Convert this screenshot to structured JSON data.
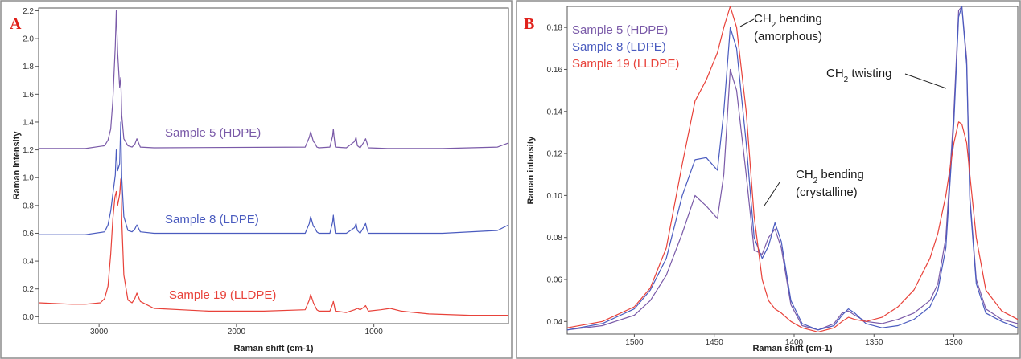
{
  "colors": {
    "hdpe": "#7a5aa8",
    "ldpe": "#4a5bbf",
    "lldpe": "#e8423a",
    "panel_label": "#e0201a",
    "frame": "#8c8c8c",
    "plot_border": "#555555"
  },
  "chart_data": [
    {
      "panel_label": "A",
      "type": "line",
      "xlabel": "Raman shift (cm-1)",
      "ylabel": "Raman intensity",
      "x_reversed": true,
      "xlim": [
        3440,
        20
      ],
      "ylim": [
        -0.05,
        2.22
      ],
      "xticks": [
        {
          "value": 3000,
          "label": "3000"
        },
        {
          "value": 2000,
          "label": "2000"
        },
        {
          "value": 1000,
          "label": "1000"
        }
      ],
      "yticks": [
        {
          "value": 0.0,
          "label": "0.0"
        },
        {
          "value": 0.2,
          "label": "0.2"
        },
        {
          "value": 0.4,
          "label": "0.4"
        },
        {
          "value": 0.6,
          "label": "0.6"
        },
        {
          "value": 0.8,
          "label": "0.8"
        },
        {
          "value": 1.0,
          "label": "1.0"
        },
        {
          "value": 1.2,
          "label": "1.2"
        },
        {
          "value": 1.4,
          "label": "1.4"
        },
        {
          "value": 1.6,
          "label": "1.6"
        },
        {
          "value": 1.8,
          "label": "1.8"
        },
        {
          "value": 2.0,
          "label": "2.0"
        },
        {
          "value": 2.2,
          "label": "2.2"
        }
      ],
      "annotations": [
        {
          "text": "Sample 5 (HDPE)",
          "series": "hdpe"
        },
        {
          "text": "Sample 8 (LDPE)",
          "series": "ldpe"
        },
        {
          "text": "Sample 19 (LLDPE)",
          "series": "lldpe"
        }
      ],
      "series": [
        {
          "key": "hdpe",
          "name": "Sample 5 (HDPE)",
          "x": [
            3440,
            3100,
            2960,
            2935,
            2915,
            2900,
            2882,
            2875,
            2865,
            2850,
            2842,
            2835,
            2820,
            2790,
            2760,
            2740,
            2725,
            2700,
            2600,
            1500,
            1470,
            1460,
            1440,
            1430,
            1415,
            1400,
            1320,
            1300,
            1295,
            1290,
            1280,
            1200,
            1140,
            1130,
            1120,
            1100,
            1070,
            1060,
            1050,
            1040,
            900,
            500,
            100,
            20
          ],
          "y": [
            1.21,
            1.21,
            1.23,
            1.27,
            1.35,
            1.55,
            1.95,
            2.2,
            1.9,
            1.65,
            1.72,
            1.45,
            1.28,
            1.23,
            1.22,
            1.24,
            1.28,
            1.22,
            1.215,
            1.22,
            1.29,
            1.33,
            1.26,
            1.25,
            1.22,
            1.215,
            1.22,
            1.3,
            1.35,
            1.3,
            1.22,
            1.215,
            1.26,
            1.29,
            1.23,
            1.215,
            1.26,
            1.28,
            1.25,
            1.215,
            1.21,
            1.21,
            1.22,
            1.25
          ]
        },
        {
          "key": "ldpe",
          "name": "Sample 8 (LDPE)",
          "x": [
            3440,
            3100,
            2960,
            2935,
            2915,
            2900,
            2882,
            2875,
            2865,
            2850,
            2842,
            2835,
            2820,
            2790,
            2760,
            2740,
            2725,
            2700,
            2600,
            1500,
            1470,
            1460,
            1440,
            1430,
            1415,
            1400,
            1320,
            1300,
            1295,
            1290,
            1280,
            1200,
            1140,
            1130,
            1120,
            1100,
            1070,
            1060,
            1050,
            1040,
            900,
            500,
            100,
            20
          ],
          "y": [
            0.59,
            0.59,
            0.61,
            0.66,
            0.76,
            0.88,
            1.02,
            1.2,
            1.05,
            1.1,
            1.4,
            1.0,
            0.72,
            0.62,
            0.61,
            0.63,
            0.66,
            0.61,
            0.6,
            0.6,
            0.67,
            0.72,
            0.65,
            0.64,
            0.61,
            0.6,
            0.6,
            0.68,
            0.73,
            0.68,
            0.6,
            0.6,
            0.64,
            0.67,
            0.62,
            0.6,
            0.65,
            0.67,
            0.63,
            0.6,
            0.6,
            0.6,
            0.62,
            0.66
          ]
        },
        {
          "key": "lldpe",
          "name": "Sample 19 (LLDPE)",
          "x": [
            3440,
            3200,
            3100,
            2990,
            2960,
            2935,
            2915,
            2900,
            2885,
            2875,
            2865,
            2850,
            2842,
            2835,
            2820,
            2790,
            2760,
            2740,
            2725,
            2700,
            2600,
            2200,
            1800,
            1500,
            1470,
            1460,
            1440,
            1430,
            1415,
            1400,
            1320,
            1300,
            1295,
            1290,
            1280,
            1200,
            1140,
            1120,
            1100,
            1070,
            1060,
            1050,
            1040,
            950,
            880,
            800,
            600,
            300,
            20
          ],
          "y": [
            0.1,
            0.09,
            0.09,
            0.1,
            0.13,
            0.22,
            0.45,
            0.7,
            0.86,
            0.9,
            0.8,
            0.88,
            0.99,
            0.7,
            0.3,
            0.12,
            0.1,
            0.13,
            0.17,
            0.11,
            0.06,
            0.04,
            0.04,
            0.05,
            0.12,
            0.16,
            0.1,
            0.08,
            0.05,
            0.04,
            0.04,
            0.09,
            0.11,
            0.09,
            0.04,
            0.03,
            0.05,
            0.06,
            0.05,
            0.07,
            0.08,
            0.06,
            0.04,
            0.05,
            0.06,
            0.04,
            0.02,
            0.01,
            0.01
          ]
        }
      ]
    },
    {
      "panel_label": "B",
      "type": "line",
      "xlabel": "Raman shift (cm-1)",
      "ylabel": "Raman intensity",
      "x_reversed": true,
      "xlim": [
        1542,
        1260
      ],
      "ylim": [
        0.034,
        0.19
      ],
      "xticks": [
        {
          "value": 1500,
          "label": "1500"
        },
        {
          "value": 1450,
          "label": "1450"
        },
        {
          "value": 1400,
          "label": "1400"
        },
        {
          "value": 1350,
          "label": "1350"
        },
        {
          "value": 1300,
          "label": "1300"
        }
      ],
      "yticks": [
        {
          "value": 0.04,
          "label": "0.04"
        },
        {
          "value": 0.06,
          "label": "0.06"
        },
        {
          "value": 0.08,
          "label": "0.08"
        },
        {
          "value": 0.1,
          "label": "0.10"
        },
        {
          "value": 0.12,
          "label": "0.12"
        },
        {
          "value": 0.14,
          "label": "0.14"
        },
        {
          "value": 0.16,
          "label": "0.16"
        },
        {
          "value": 0.18,
          "label": "0.18"
        }
      ],
      "legend": [
        {
          "text": "Sample 5 (HDPE)",
          "series": "hdpe"
        },
        {
          "text": "Sample 8 (LDPE)",
          "series": "ldpe"
        },
        {
          "text": "Sample 19 (LLDPE)",
          "series": "lldpe"
        }
      ],
      "annotations": [
        {
          "line1": "CH",
          "sub": "2",
          "line1_rest": " bending",
          "line2": "(amorphous)"
        },
        {
          "line1": "CH",
          "sub": "2",
          "line1_rest": " bending",
          "line2": "(crystalline)"
        },
        {
          "line1": "CH",
          "sub": "2",
          "line1_rest": " twisting",
          "line2": ""
        }
      ],
      "series": [
        {
          "key": "hdpe",
          "name": "Sample 5 (HDPE)",
          "x": [
            1542,
            1520,
            1500,
            1490,
            1480,
            1470,
            1462,
            1455,
            1448,
            1444,
            1440,
            1436,
            1430,
            1425,
            1420,
            1416,
            1412,
            1408,
            1402,
            1395,
            1385,
            1375,
            1370,
            1366,
            1362,
            1355,
            1345,
            1335,
            1325,
            1315,
            1310,
            1305,
            1300,
            1297,
            1295,
            1292,
            1290,
            1286,
            1280,
            1270,
            1260
          ],
          "y": [
            0.036,
            0.038,
            0.043,
            0.05,
            0.062,
            0.082,
            0.1,
            0.095,
            0.089,
            0.11,
            0.16,
            0.15,
            0.11,
            0.074,
            0.072,
            0.08,
            0.084,
            0.075,
            0.048,
            0.038,
            0.036,
            0.039,
            0.044,
            0.045,
            0.043,
            0.04,
            0.039,
            0.041,
            0.044,
            0.05,
            0.058,
            0.08,
            0.14,
            0.188,
            0.19,
            0.165,
            0.1,
            0.06,
            0.046,
            0.041,
            0.039
          ]
        },
        {
          "key": "ldpe",
          "name": "Sample 8 (LDPE)",
          "x": [
            1542,
            1520,
            1500,
            1490,
            1480,
            1470,
            1462,
            1455,
            1448,
            1444,
            1440,
            1436,
            1430,
            1425,
            1420,
            1416,
            1412,
            1408,
            1402,
            1395,
            1385,
            1375,
            1370,
            1366,
            1362,
            1355,
            1345,
            1335,
            1325,
            1315,
            1310,
            1305,
            1300,
            1297,
            1295,
            1292,
            1290,
            1286,
            1280,
            1270,
            1260
          ],
          "y": [
            0.036,
            0.039,
            0.046,
            0.055,
            0.07,
            0.1,
            0.117,
            0.118,
            0.112,
            0.14,
            0.18,
            0.17,
            0.125,
            0.08,
            0.07,
            0.076,
            0.087,
            0.078,
            0.05,
            0.039,
            0.036,
            0.038,
            0.043,
            0.046,
            0.044,
            0.039,
            0.037,
            0.038,
            0.041,
            0.047,
            0.055,
            0.075,
            0.135,
            0.185,
            0.19,
            0.162,
            0.098,
            0.058,
            0.044,
            0.04,
            0.037
          ]
        },
        {
          "key": "lldpe",
          "name": "Sample 19 (LLDPE)",
          "x": [
            1542,
            1520,
            1500,
            1490,
            1480,
            1470,
            1462,
            1455,
            1448,
            1444,
            1440,
            1436,
            1430,
            1425,
            1420,
            1416,
            1412,
            1408,
            1402,
            1395,
            1385,
            1375,
            1370,
            1366,
            1362,
            1355,
            1345,
            1335,
            1325,
            1315,
            1310,
            1305,
            1300,
            1297,
            1295,
            1292,
            1290,
            1286,
            1280,
            1270,
            1260
          ],
          "y": [
            0.037,
            0.04,
            0.047,
            0.056,
            0.075,
            0.115,
            0.145,
            0.155,
            0.168,
            0.18,
            0.19,
            0.18,
            0.14,
            0.09,
            0.06,
            0.05,
            0.046,
            0.044,
            0.04,
            0.037,
            0.035,
            0.037,
            0.04,
            0.042,
            0.041,
            0.04,
            0.042,
            0.047,
            0.055,
            0.07,
            0.082,
            0.1,
            0.125,
            0.135,
            0.134,
            0.125,
            0.11,
            0.08,
            0.055,
            0.045,
            0.041
          ]
        }
      ]
    }
  ]
}
